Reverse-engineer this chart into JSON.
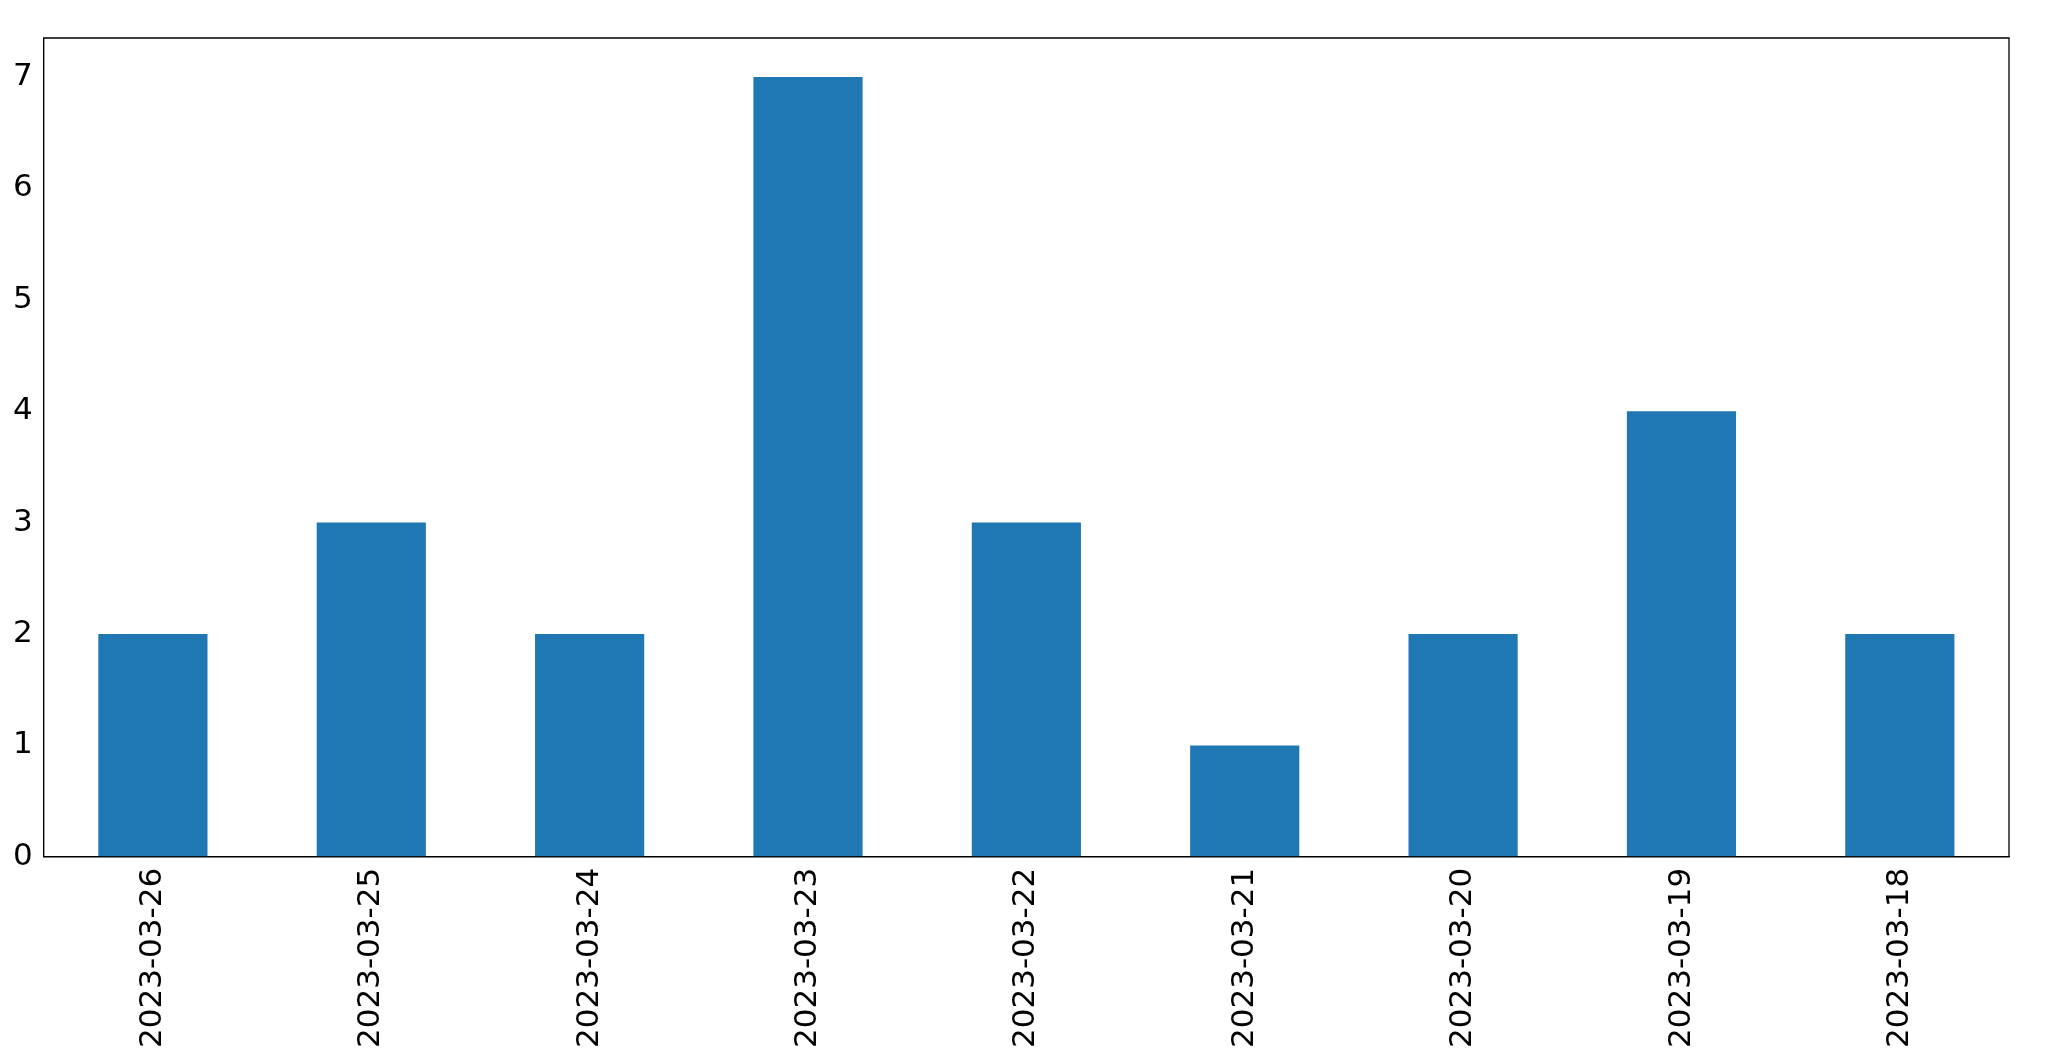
{
  "chart_data": {
    "type": "bar",
    "categories": [
      "2023-03-26",
      "2023-03-25",
      "2023-03-24",
      "2023-03-23",
      "2023-03-22",
      "2023-03-21",
      "2023-03-20",
      "2023-03-19",
      "2023-03-18"
    ],
    "values": [
      2,
      3,
      2,
      7,
      3,
      1,
      2,
      4,
      2
    ],
    "color": "#1f77b4",
    "ylim": [
      0,
      7.35
    ],
    "yticks": [
      0,
      1,
      2,
      3,
      4,
      5,
      6,
      7
    ],
    "grid": false,
    "legend": false
  }
}
